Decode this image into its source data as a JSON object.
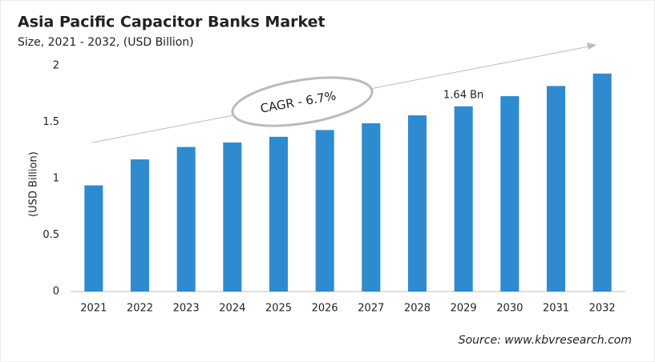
{
  "chart_data": {
    "type": "bar",
    "title": "Asia Pacific Capacitor Banks Market",
    "subtitle": "Size, 2021 - 2032, (USD Billion)",
    "y_label": "(USD Billion)",
    "categories": [
      "2021",
      "2022",
      "2023",
      "2024",
      "2025",
      "2026",
      "2027",
      "2028",
      "2029",
      "2030",
      "2031",
      "2032"
    ],
    "values": [
      0.94,
      1.17,
      1.28,
      1.32,
      1.37,
      1.43,
      1.49,
      1.56,
      1.64,
      1.73,
      1.82,
      1.93
    ],
    "value_labels": [
      null,
      null,
      null,
      null,
      null,
      null,
      null,
      null,
      "1.64 Bn",
      null,
      null,
      null
    ],
    "color": "#2e8bcf",
    "ylim": [
      0,
      2
    ],
    "yticks": [
      0,
      0.5,
      1,
      1.5,
      2
    ],
    "grid": false,
    "annotation": "CAGR - 6.7%",
    "source": "Source: www.kbvresearch.com"
  }
}
